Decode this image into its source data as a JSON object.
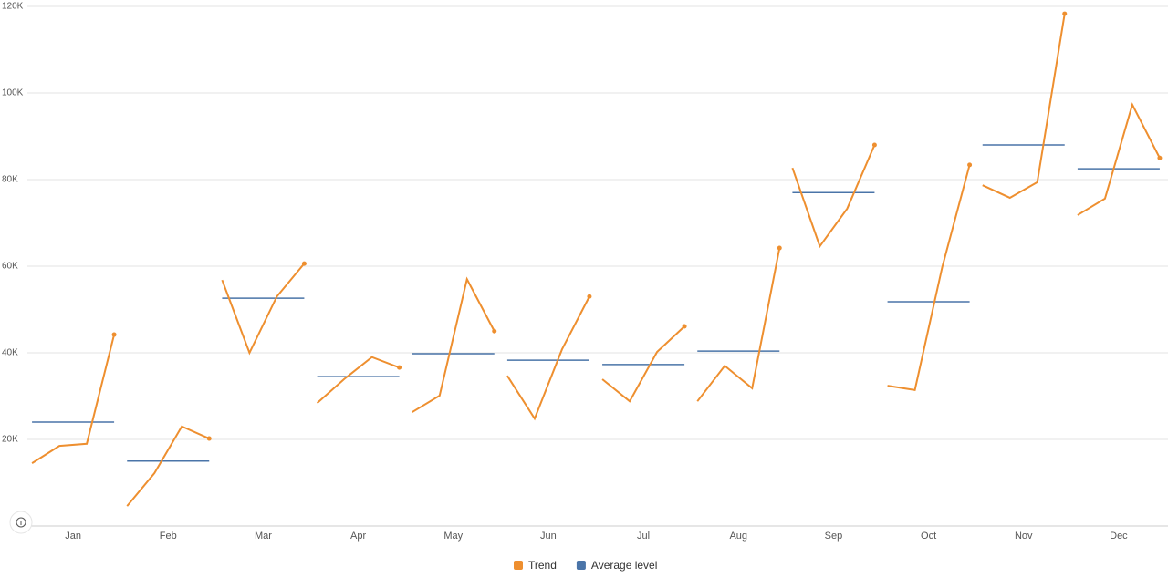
{
  "chart_data": {
    "type": "cycle",
    "categories": [
      "Jan",
      "Feb",
      "Mar",
      "Apr",
      "May",
      "Jun",
      "Jul",
      "Aug",
      "Sep",
      "Oct",
      "Nov",
      "Dec"
    ],
    "series": [
      {
        "name": "Trend",
        "color": "#ee8f2f",
        "values": [
          [
            14500,
            18500,
            19000,
            44200
          ],
          [
            4600,
            12200,
            23000,
            20200
          ],
          [
            56800,
            40000,
            53000,
            60600
          ],
          [
            28400,
            34000,
            39000,
            36600
          ],
          [
            26300,
            30100,
            57000,
            45000
          ],
          [
            34700,
            24800,
            40800,
            53000
          ],
          [
            33900,
            28800,
            40200,
            46100
          ],
          [
            28800,
            37000,
            31800,
            64200
          ],
          [
            82700,
            64600,
            73300,
            88000
          ],
          [
            32400,
            31400,
            59800,
            83400
          ],
          [
            78700,
            75800,
            79400,
            118300
          ],
          [
            71800,
            75600,
            97300,
            85000
          ]
        ]
      },
      {
        "name": "Average level",
        "color": "#4a74a8",
        "values": [
          24000,
          15000,
          52600,
          34500,
          39800,
          38300,
          37300,
          40400,
          77000,
          51800,
          88000,
          82500
        ]
      }
    ],
    "ylim": [
      0,
      120000
    ],
    "yticks": [
      {
        "value": 20000,
        "label": "20K"
      },
      {
        "value": 40000,
        "label": "40K"
      },
      {
        "value": 60000,
        "label": "60K"
      },
      {
        "value": 80000,
        "label": "80K"
      },
      {
        "value": 100000,
        "label": "100K"
      },
      {
        "value": 120000,
        "label": "120K"
      }
    ],
    "grid": true
  }
}
